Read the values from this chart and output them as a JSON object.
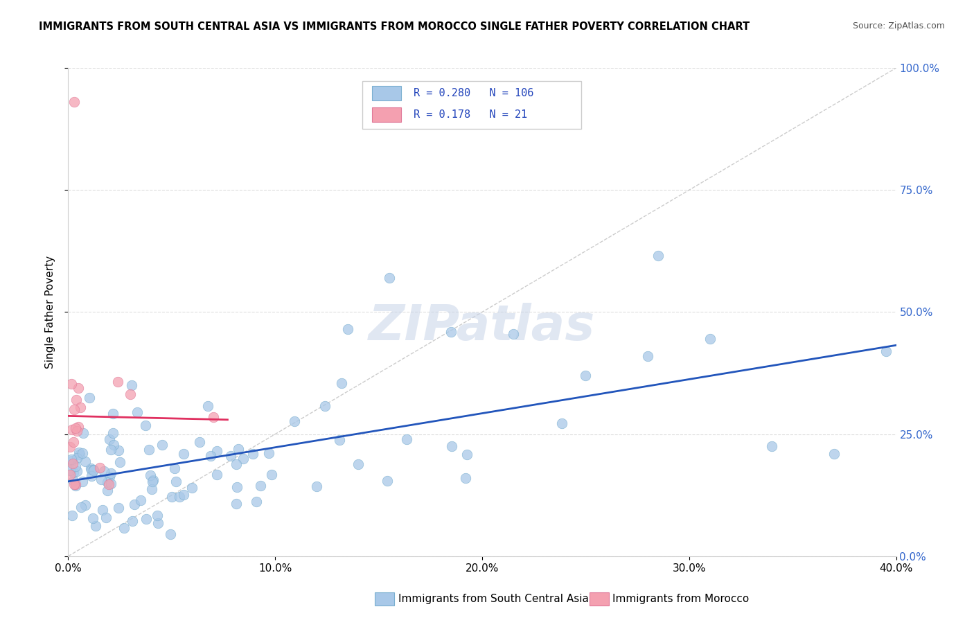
{
  "title": "IMMIGRANTS FROM SOUTH CENTRAL ASIA VS IMMIGRANTS FROM MOROCCO SINGLE FATHER POVERTY CORRELATION CHART",
  "source": "Source: ZipAtlas.com",
  "ylabel": "Single Father Poverty",
  "legend_label1": "Immigrants from South Central Asia",
  "legend_label2": "Immigrants from Morocco",
  "R1": 0.28,
  "N1": 106,
  "R2": 0.178,
  "N2": 21,
  "color1": "#a8c8e8",
  "color2": "#f4a0b0",
  "edge_color1": "#7aafd0",
  "edge_color2": "#e07898",
  "trendline1_color": "#2255bb",
  "trendline2_color": "#e03060",
  "watermark": "ZIPatlas",
  "xmin": 0.0,
  "xmax": 0.4,
  "ymin": 0.0,
  "ymax": 1.0,
  "x_ticks": [
    0.0,
    0.1,
    0.2,
    0.3,
    0.4
  ],
  "x_tick_labels": [
    "0.0%",
    "10.0%",
    "20.0%",
    "30.0%",
    "40.0%"
  ],
  "y_ticks": [
    0.0,
    0.25,
    0.5,
    0.75,
    1.0
  ],
  "y_tick_labels": [
    "0.0%",
    "25.0%",
    "50.0%",
    "75.0%",
    "100.0%"
  ]
}
